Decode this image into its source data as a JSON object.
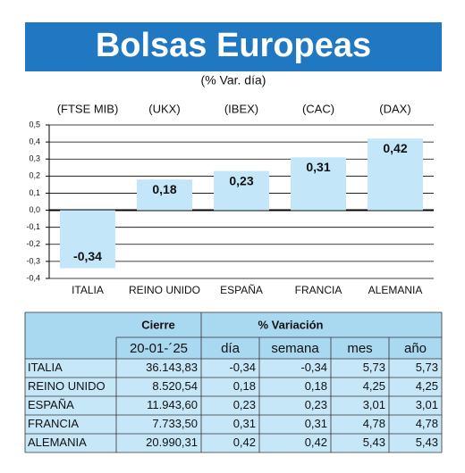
{
  "chart_data": {
    "type": "bar",
    "title": "Bolsas Europeas",
    "subtitle": "(% Var. día)",
    "index_labels": [
      "(FTSE MIB)",
      "(UKX)",
      "(IBEX)",
      "(CAC)",
      "(DAX)"
    ],
    "categories": [
      "ITALIA",
      "REINO UNIDO",
      "ESPAÑA",
      "FRANCIA",
      "ALEMANIA"
    ],
    "values": [
      -0.34,
      0.18,
      0.23,
      0.31,
      0.42
    ],
    "value_labels": [
      "-0,34",
      "0,18",
      "0,23",
      "0,31",
      "0,42"
    ],
    "color": "#c3e7f8",
    "ylim": [
      -0.4,
      0.5
    ],
    "yticks": [
      {
        "value": 0.5,
        "label": "0,5"
      },
      {
        "value": 0.4,
        "label": "0,4"
      },
      {
        "value": 0.3,
        "label": "0,3"
      },
      {
        "value": 0.2,
        "label": "0,2"
      },
      {
        "value": 0.1,
        "label": "0,1"
      },
      {
        "value": 0,
        "label": "0,0"
      },
      {
        "value": -0.1,
        "label": "-0,1"
      },
      {
        "value": -0.2,
        "label": "-0,2"
      },
      {
        "value": -0.3,
        "label": "-0,3"
      },
      {
        "value": -0.4,
        "label": "-0,4"
      }
    ],
    "grid": true
  },
  "table": {
    "header": [
      "Cierre",
      "% Variación"
    ],
    "subheader": [
      "20-01-´25",
      "día",
      "semana",
      "mes",
      "año"
    ],
    "rows": [
      [
        "ITALIA",
        "36.143,83",
        "-0,34",
        "-0,34",
        "5,73",
        "5,73"
      ],
      [
        "REINO UNIDO",
        "8.520,54",
        "0,18",
        "0,18",
        "4,25",
        "4,25"
      ],
      [
        "ESPAÑA",
        "11.943,60",
        "0,23",
        "0,23",
        "3,01",
        "3,01"
      ],
      [
        "FRANCIA",
        "7.733,50",
        "0,31",
        "0,31",
        "4,78",
        "4,78"
      ],
      [
        "ALEMANIA",
        "20.990,31",
        "0,42",
        "0,42",
        "5,43",
        "5,43"
      ]
    ]
  }
}
